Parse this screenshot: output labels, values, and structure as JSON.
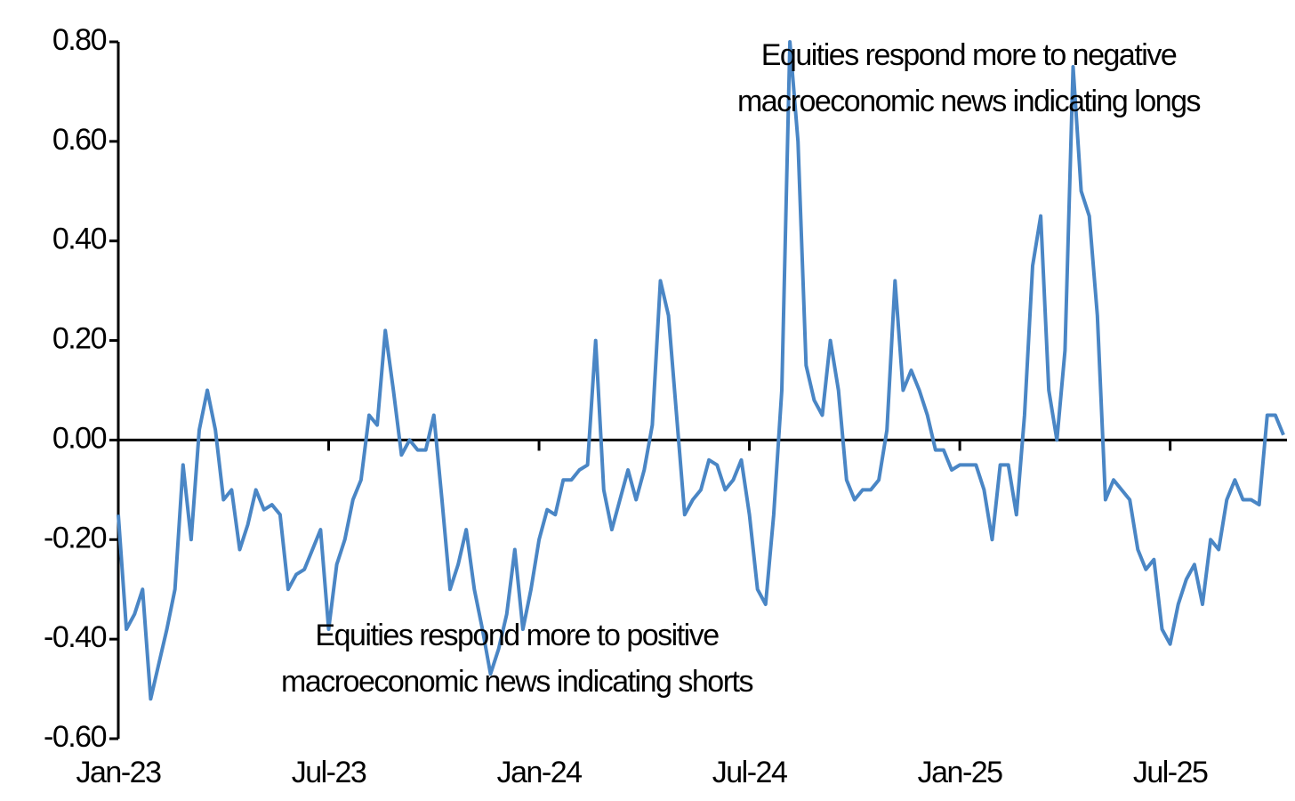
{
  "chart_data": {
    "type": "line",
    "color": "#4a86c5",
    "annotations": [
      {
        "lines": [
          "Equities respond more to negative",
          "macroeconomic news indicating longs"
        ]
      },
      {
        "lines": [
          "Equities respond more to positive",
          "macroeconomic news indicating shorts"
        ]
      }
    ],
    "categories": [
      "Jan-23",
      null,
      null,
      null,
      null,
      null,
      null,
      null,
      null,
      null,
      null,
      null,
      null,
      null,
      null,
      null,
      null,
      null,
      null,
      null,
      null,
      null,
      null,
      null,
      null,
      null,
      "Jul-23",
      null,
      null,
      null,
      null,
      null,
      null,
      null,
      null,
      null,
      null,
      null,
      null,
      null,
      null,
      null,
      null,
      null,
      null,
      null,
      null,
      null,
      null,
      null,
      null,
      null,
      "Jan-24",
      null,
      null,
      null,
      null,
      null,
      null,
      null,
      null,
      null,
      null,
      null,
      null,
      null,
      null,
      null,
      null,
      null,
      null,
      null,
      null,
      null,
      null,
      null,
      null,
      null,
      "Jul-24",
      null,
      null,
      null,
      null,
      null,
      null,
      null,
      null,
      null,
      null,
      null,
      null,
      null,
      null,
      null,
      null,
      null,
      null,
      null,
      null,
      null,
      null,
      null,
      null,
      null,
      "Jan-25",
      null,
      null,
      null,
      null,
      null,
      null,
      null,
      null,
      null,
      null,
      null,
      null,
      null,
      null,
      null,
      null,
      null,
      null,
      null,
      null,
      null,
      null,
      null,
      null,
      null,
      "Jul-25",
      null,
      null,
      null,
      null,
      null,
      null,
      null,
      null,
      null,
      null,
      null,
      null,
      null,
      null
    ],
    "values": [
      -0.15,
      -0.38,
      -0.35,
      -0.3,
      -0.52,
      -0.45,
      -0.38,
      -0.3,
      -0.05,
      -0.2,
      0.02,
      0.1,
      0.02,
      -0.12,
      -0.1,
      -0.22,
      -0.17,
      -0.1,
      -0.14,
      -0.13,
      -0.15,
      -0.3,
      -0.27,
      -0.26,
      -0.22,
      -0.18,
      -0.38,
      -0.25,
      -0.2,
      -0.12,
      -0.08,
      0.05,
      0.03,
      0.22,
      0.1,
      -0.03,
      0.0,
      -0.02,
      -0.02,
      0.05,
      -0.12,
      -0.3,
      -0.25,
      -0.18,
      -0.3,
      -0.38,
      -0.47,
      -0.42,
      -0.35,
      -0.22,
      -0.38,
      -0.3,
      -0.2,
      -0.14,
      -0.15,
      -0.08,
      -0.08,
      -0.06,
      -0.05,
      0.2,
      -0.1,
      -0.18,
      -0.12,
      -0.06,
      -0.12,
      -0.06,
      0.03,
      0.32,
      0.25,
      0.05,
      -0.15,
      -0.12,
      -0.1,
      -0.04,
      -0.05,
      -0.1,
      -0.08,
      -0.04,
      -0.15,
      -0.3,
      -0.33,
      -0.15,
      0.1,
      0.8,
      0.6,
      0.15,
      0.08,
      0.05,
      0.2,
      0.1,
      -0.08,
      -0.12,
      -0.1,
      -0.1,
      -0.08,
      0.02,
      0.32,
      0.1,
      0.14,
      0.1,
      0.05,
      -0.02,
      -0.02,
      -0.06,
      -0.05,
      -0.05,
      -0.05,
      -0.1,
      -0.2,
      -0.05,
      -0.05,
      -0.15,
      0.05,
      0.35,
      0.45,
      0.1,
      0.0,
      0.18,
      0.75,
      0.5,
      0.45,
      0.25,
      -0.12,
      -0.08,
      -0.1,
      -0.12,
      -0.22,
      -0.26,
      -0.24,
      -0.38,
      -0.41,
      -0.33,
      -0.28,
      -0.25,
      -0.33,
      -0.2,
      -0.22,
      -0.12,
      -0.08,
      -0.12,
      -0.12,
      -0.13,
      0.05,
      0.05,
      0.01
    ],
    "ylim": [
      -0.6,
      0.8
    ],
    "yticks": [
      {
        "value": -0.6,
        "label": "-0.60"
      },
      {
        "value": -0.4,
        "label": "-0.40"
      },
      {
        "value": -0.2,
        "label": "-0.20"
      },
      {
        "value": 0,
        "label": "0.00"
      },
      {
        "value": 0.2,
        "label": "0.20"
      },
      {
        "value": 0.4,
        "label": "0.40"
      },
      {
        "value": 0.6,
        "label": "0.60"
      },
      {
        "value": 0.8,
        "label": "0.80"
      }
    ]
  }
}
